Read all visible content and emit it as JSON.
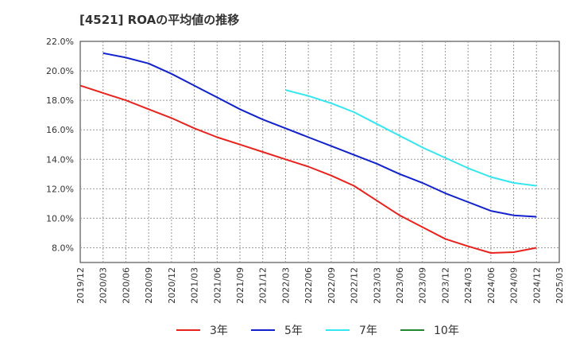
{
  "chart_data": {
    "type": "line",
    "title": "[4521]  ROAの平均値の推移",
    "xlabel": "",
    "ylabel": "",
    "ylim": [
      7.0,
      22.0
    ],
    "yticks": [
      "8.0%",
      "10.0%",
      "12.0%",
      "14.0%",
      "16.0%",
      "18.0%",
      "20.0%",
      "22.0%"
    ],
    "ytick_values": [
      8,
      10,
      12,
      14,
      16,
      18,
      20,
      22
    ],
    "xticks": [
      "2019/12",
      "2020/03",
      "2020/06",
      "2020/09",
      "2020/12",
      "2021/03",
      "2021/06",
      "2021/09",
      "2021/12",
      "2022/03",
      "2022/06",
      "2022/09",
      "2022/12",
      "2023/03",
      "2023/06",
      "2023/09",
      "2023/12",
      "2024/03",
      "2024/06",
      "2024/09",
      "2024/12",
      "2025/03"
    ],
    "grid": true,
    "legend_position": "bottom",
    "series": [
      {
        "name": "3年",
        "color": "#e8231e",
        "x": [
          "2019/12",
          "2020/03",
          "2020/06",
          "2020/09",
          "2020/12",
          "2021/03",
          "2021/06",
          "2021/09",
          "2021/12",
          "2022/03",
          "2022/06",
          "2022/09",
          "2022/12",
          "2023/03",
          "2023/06",
          "2023/09",
          "2023/12",
          "2024/03",
          "2024/06",
          "2024/09",
          "2024/12"
        ],
        "values": [
          19.0,
          18.5,
          18.0,
          17.4,
          16.8,
          16.1,
          15.5,
          15.0,
          14.5,
          14.0,
          13.5,
          12.9,
          12.2,
          11.2,
          10.2,
          9.4,
          8.6,
          8.1,
          7.65,
          7.7,
          8.0
        ]
      },
      {
        "name": "5年",
        "color": "#1122cc",
        "x": [
          "2020/03",
          "2020/06",
          "2020/09",
          "2020/12",
          "2021/03",
          "2021/06",
          "2021/09",
          "2021/12",
          "2022/03",
          "2022/06",
          "2022/09",
          "2022/12",
          "2023/03",
          "2023/06",
          "2023/09",
          "2023/12",
          "2024/03",
          "2024/06",
          "2024/09",
          "2024/12"
        ],
        "values": [
          21.2,
          20.9,
          20.5,
          19.8,
          19.0,
          18.2,
          17.4,
          16.7,
          16.1,
          15.5,
          14.9,
          14.3,
          13.7,
          13.0,
          12.4,
          11.7,
          11.1,
          10.5,
          10.2,
          10.1
        ]
      },
      {
        "name": "7年",
        "color": "#33e6f0",
        "x": [
          "2022/03",
          "2022/06",
          "2022/09",
          "2022/12",
          "2023/03",
          "2023/06",
          "2023/09",
          "2023/12",
          "2024/03",
          "2024/06",
          "2024/09",
          "2024/12"
        ],
        "values": [
          18.7,
          18.3,
          17.8,
          17.2,
          16.4,
          15.6,
          14.8,
          14.1,
          13.4,
          12.8,
          12.4,
          12.2
        ]
      },
      {
        "name": "10年",
        "color": "#22882e",
        "x": [],
        "values": []
      }
    ]
  }
}
